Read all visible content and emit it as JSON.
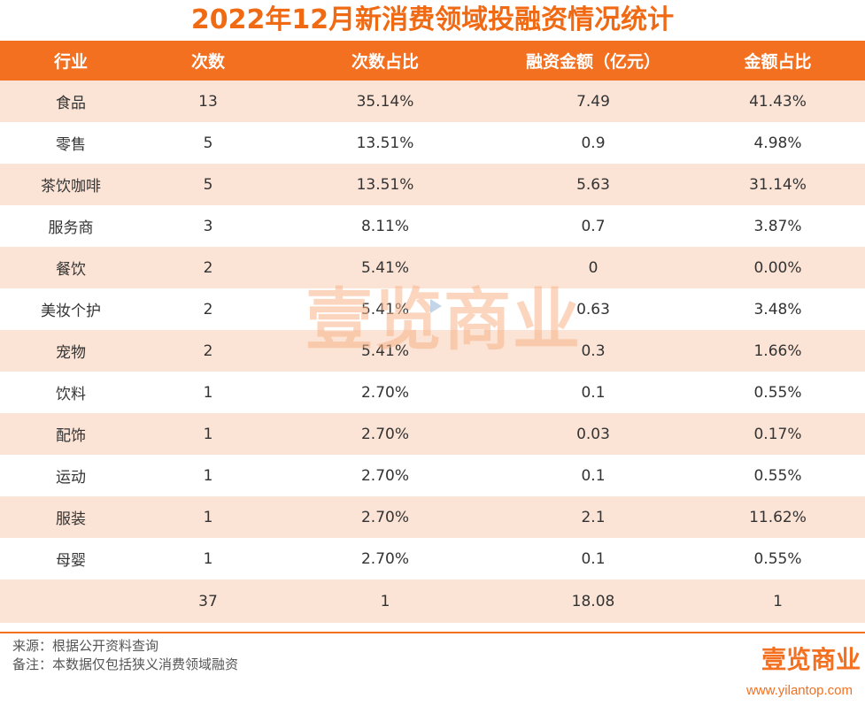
{
  "title": "2022年12月新消费领域投融资情况统计",
  "columns": [
    "行业",
    "次数",
    "次数占比",
    "融资金额（亿元）",
    "金额占比"
  ],
  "rows": [
    [
      "食品",
      "13",
      "35.14%",
      "7.49",
      "41.43%"
    ],
    [
      "零售",
      "5",
      "13.51%",
      "0.9",
      "4.98%"
    ],
    [
      "茶饮咖啡",
      "5",
      "13.51%",
      "5.63",
      "31.14%"
    ],
    [
      "服务商",
      "3",
      "8.11%",
      "0.7",
      "3.87%"
    ],
    [
      "餐饮",
      "2",
      "5.41%",
      "0",
      "0.00%"
    ],
    [
      "美妆个护",
      "2",
      "5.41%",
      "0.63",
      "3.48%"
    ],
    [
      "宠物",
      "2",
      "5.41%",
      "0.3",
      "1.66%"
    ],
    [
      "饮料",
      "1",
      "2.70%",
      "0.1",
      "0.55%"
    ],
    [
      "配饰",
      "1",
      "2.70%",
      "0.03",
      "0.17%"
    ],
    [
      "运动",
      "1",
      "2.70%",
      "0.1",
      "0.55%"
    ],
    [
      "服装",
      "1",
      "2.70%",
      "2.1",
      "11.62%"
    ],
    [
      "母婴",
      "1",
      "2.70%",
      "0.1",
      "0.55%"
    ],
    [
      "",
      "37",
      "1",
      "18.08",
      "1"
    ]
  ],
  "notes": {
    "source": "来源：根据公开资料查询",
    "remark": "备注：本数据仅包括狭义消费领域融资"
  },
  "brand": {
    "watermark": "壹览商业",
    "logo": "壹览商业",
    "website": "www.yilantop.com",
    "accent_color": "#f37021",
    "stripe_color": "#fbe4d6"
  }
}
